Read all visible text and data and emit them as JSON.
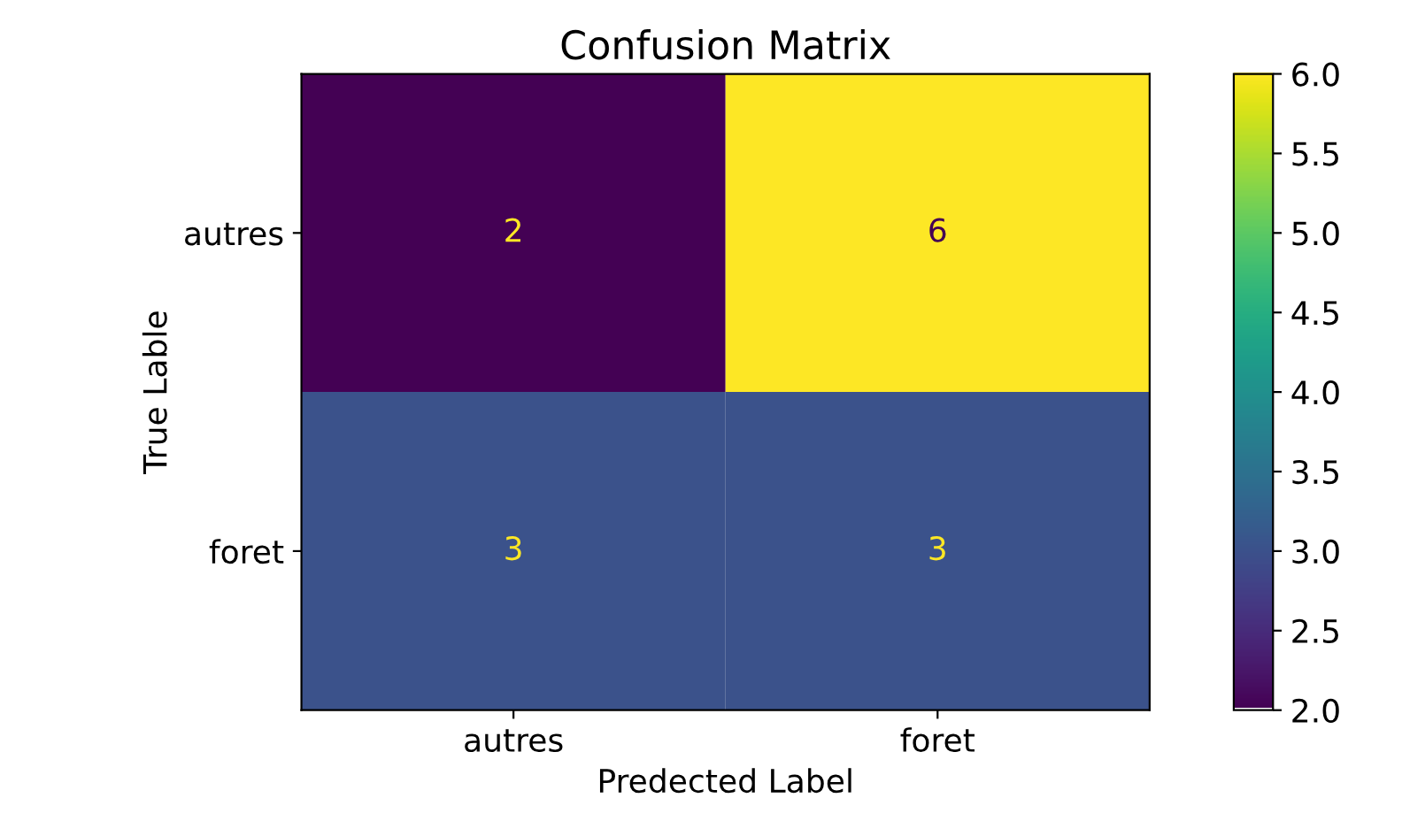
{
  "chart_data": {
    "type": "heatmap",
    "title": "Confusion Matrix",
    "xlabel": "Predected Label",
    "ylabel": "True Lable",
    "categories": [
      "autres",
      "foret"
    ],
    "y_categories": [
      "autres",
      "foret"
    ],
    "cells": [
      [
        2,
        6
      ],
      [
        3,
        3
      ]
    ],
    "clim": [
      2.0,
      6.0
    ],
    "cticks": [
      {
        "value": 2,
        "label": "2.0"
      },
      2.5,
      {
        "value": 3,
        "label": "3.0"
      },
      3.5,
      {
        "value": 4,
        "label": "4.0"
      },
      4.5,
      {
        "value": 5,
        "label": "5.0"
      },
      5.5,
      {
        "value": 6,
        "label": "6.0"
      }
    ],
    "data_labels": true
  }
}
